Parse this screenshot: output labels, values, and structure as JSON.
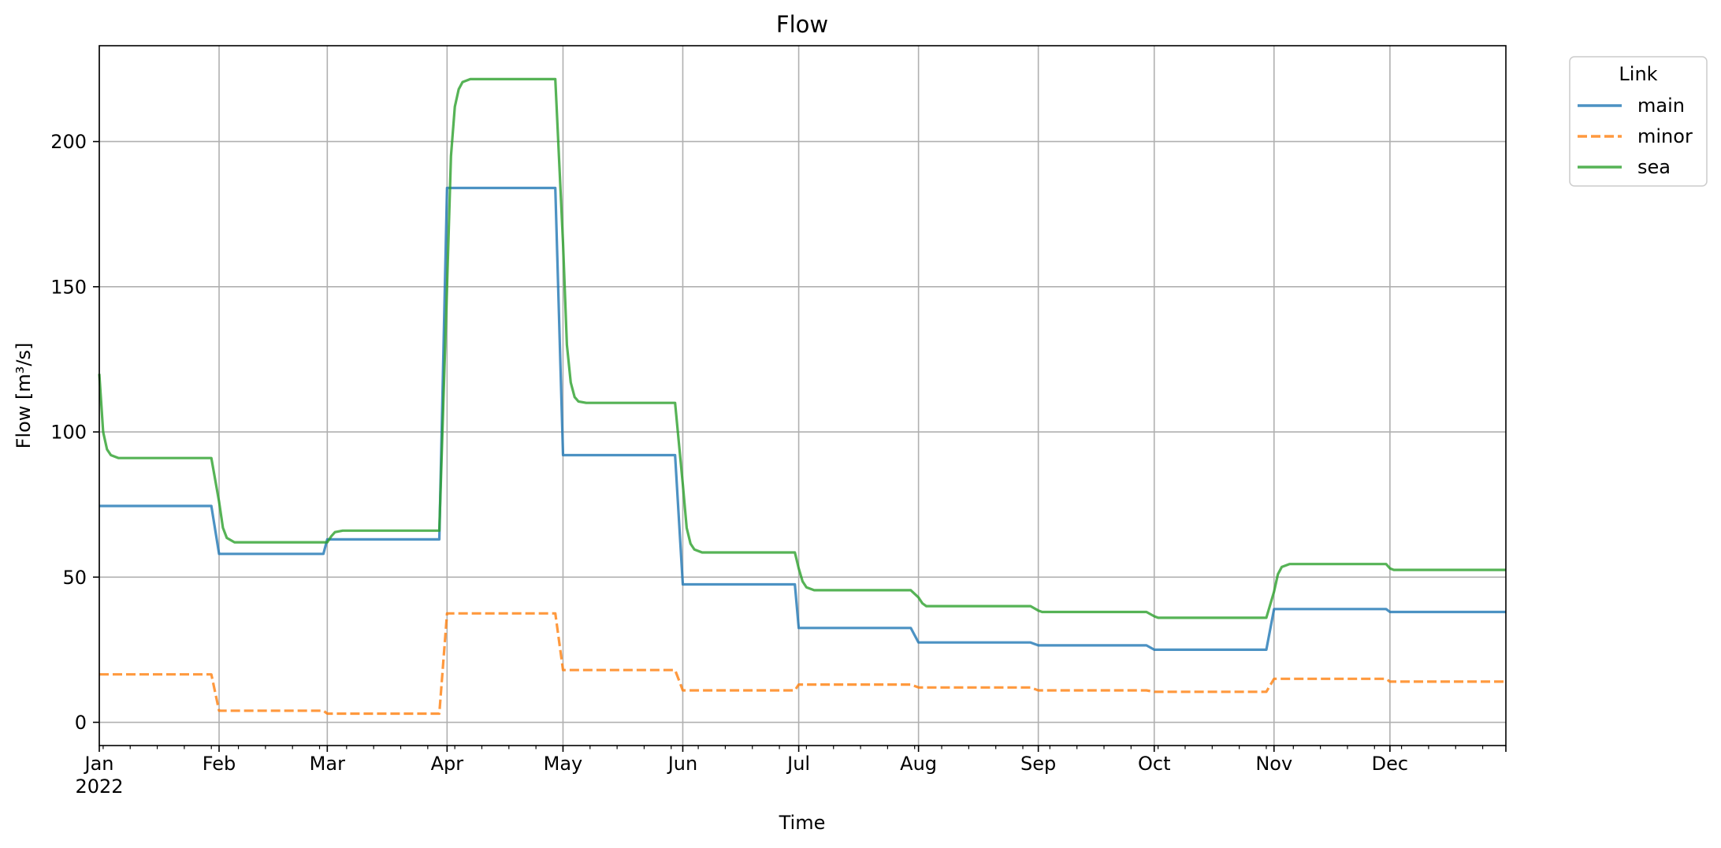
{
  "chart_data": {
    "type": "line",
    "title": "Flow",
    "xlabel": "Time",
    "ylabel": "Flow [m³/s]",
    "x_tick_labels": [
      "Jan",
      "Feb",
      "Mar",
      "Apr",
      "May",
      "Jun",
      "Jul",
      "Aug",
      "Sep",
      "Oct",
      "Nov",
      "Dec"
    ],
    "x_year_label": "2022",
    "y_ticks": [
      0,
      50,
      100,
      150,
      200
    ],
    "ylim": [
      -8,
      233
    ],
    "xlim": [
      "2022-01-01",
      "2022-12-31"
    ],
    "grid": true,
    "legend": {
      "title": "Link",
      "position": "outside-top-right"
    },
    "series": [
      {
        "name": "main",
        "color": "#1f77b4",
        "style": "solid",
        "points": [
          [
            "2022-01-01",
            74.5
          ],
          [
            "2022-01-30",
            74.5
          ],
          [
            "2022-02-01",
            58
          ],
          [
            "2022-02-28",
            58
          ],
          [
            "2022-03-01",
            63
          ],
          [
            "2022-03-30",
            63
          ],
          [
            "2022-04-01",
            184
          ],
          [
            "2022-04-29",
            184
          ],
          [
            "2022-05-01",
            92
          ],
          [
            "2022-05-30",
            92
          ],
          [
            "2022-06-01",
            47.5
          ],
          [
            "2022-06-30",
            47.5
          ],
          [
            "2022-07-01",
            32.5
          ],
          [
            "2022-07-30",
            32.5
          ],
          [
            "2022-08-01",
            27.5
          ],
          [
            "2022-08-30",
            27.5
          ],
          [
            "2022-09-01",
            26.5
          ],
          [
            "2022-09-29",
            26.5
          ],
          [
            "2022-10-01",
            25
          ],
          [
            "2022-10-30",
            25
          ],
          [
            "2022-11-01",
            39
          ],
          [
            "2022-11-30",
            39
          ],
          [
            "2022-12-01",
            38
          ],
          [
            "2022-12-31",
            38
          ]
        ]
      },
      {
        "name": "minor",
        "color": "#ff7f0e",
        "style": "dashed",
        "points": [
          [
            "2022-01-01",
            16.5
          ],
          [
            "2022-01-30",
            16.5
          ],
          [
            "2022-02-01",
            4
          ],
          [
            "2022-02-28",
            4
          ],
          [
            "2022-03-01",
            3
          ],
          [
            "2022-03-30",
            3
          ],
          [
            "2022-04-01",
            37.5
          ],
          [
            "2022-04-29",
            37.5
          ],
          [
            "2022-05-01",
            18
          ],
          [
            "2022-05-30",
            18
          ],
          [
            "2022-06-01",
            11
          ],
          [
            "2022-06-30",
            11
          ],
          [
            "2022-07-01",
            13
          ],
          [
            "2022-07-30",
            13
          ],
          [
            "2022-08-01",
            12
          ],
          [
            "2022-08-30",
            12
          ],
          [
            "2022-09-01",
            11
          ],
          [
            "2022-09-29",
            11
          ],
          [
            "2022-10-01",
            10.5
          ],
          [
            "2022-10-30",
            10.5
          ],
          [
            "2022-11-01",
            15
          ],
          [
            "2022-11-30",
            15
          ],
          [
            "2022-12-01",
            14
          ],
          [
            "2022-12-31",
            14
          ]
        ]
      },
      {
        "name": "sea",
        "color": "#2ca02c",
        "style": "solid",
        "points": [
          [
            "2022-01-01",
            120
          ],
          [
            "2022-01-02",
            100
          ],
          [
            "2022-01-03",
            94
          ],
          [
            "2022-01-04",
            92
          ],
          [
            "2022-01-06",
            91
          ],
          [
            "2022-01-30",
            91
          ],
          [
            "2022-02-01",
            76
          ],
          [
            "2022-02-02",
            67
          ],
          [
            "2022-02-03",
            63.5
          ],
          [
            "2022-02-05",
            62
          ],
          [
            "2022-02-28",
            62
          ],
          [
            "2022-03-01",
            62
          ],
          [
            "2022-03-02",
            64
          ],
          [
            "2022-03-03",
            65.5
          ],
          [
            "2022-03-05",
            66
          ],
          [
            "2022-03-30",
            66
          ],
          [
            "2022-04-01",
            150
          ],
          [
            "2022-04-02",
            195
          ],
          [
            "2022-04-03",
            212
          ],
          [
            "2022-04-04",
            218
          ],
          [
            "2022-04-05",
            220.5
          ],
          [
            "2022-04-07",
            221.5
          ],
          [
            "2022-04-29",
            221.5
          ],
          [
            "2022-05-01",
            165
          ],
          [
            "2022-05-02",
            130
          ],
          [
            "2022-05-03",
            117
          ],
          [
            "2022-05-04",
            112
          ],
          [
            "2022-05-05",
            110.5
          ],
          [
            "2022-05-07",
            110
          ],
          [
            "2022-05-30",
            110
          ],
          [
            "2022-06-01",
            82
          ],
          [
            "2022-06-02",
            67
          ],
          [
            "2022-06-03",
            61.5
          ],
          [
            "2022-06-04",
            59.5
          ],
          [
            "2022-06-06",
            58.5
          ],
          [
            "2022-06-30",
            58.5
          ],
          [
            "2022-07-01",
            53
          ],
          [
            "2022-07-02",
            48.5
          ],
          [
            "2022-07-03",
            46.5
          ],
          [
            "2022-07-05",
            45.5
          ],
          [
            "2022-07-30",
            45.5
          ],
          [
            "2022-08-01",
            43
          ],
          [
            "2022-08-02",
            41
          ],
          [
            "2022-08-03",
            40
          ],
          [
            "2022-08-30",
            40
          ],
          [
            "2022-09-01",
            38.5
          ],
          [
            "2022-09-02",
            38
          ],
          [
            "2022-09-29",
            38
          ],
          [
            "2022-10-01",
            36.5
          ],
          [
            "2022-10-02",
            36
          ],
          [
            "2022-10-30",
            36
          ],
          [
            "2022-11-01",
            45
          ],
          [
            "2022-11-02",
            51
          ],
          [
            "2022-11-03",
            53.5
          ],
          [
            "2022-11-05",
            54.5
          ],
          [
            "2022-11-30",
            54.5
          ],
          [
            "2022-12-01",
            53
          ],
          [
            "2022-12-02",
            52.5
          ],
          [
            "2022-12-31",
            52.5
          ]
        ]
      }
    ]
  }
}
